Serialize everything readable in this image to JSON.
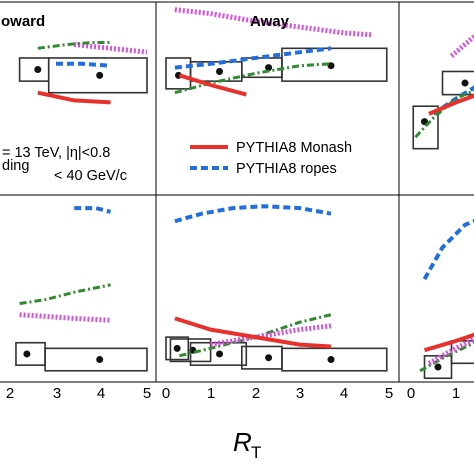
{
  "chart_data": {
    "type": "line",
    "xlabel_main": "R",
    "xlabel_sub": "T",
    "x_ticks": [
      "0",
      "1",
      "2",
      "3",
      "4",
      "5"
    ],
    "xlim": [
      0,
      5
    ],
    "grid": false,
    "legend_placement": "lower-left of Away panel",
    "legend": [
      {
        "key": "monash",
        "label": "PYTHIA8 Monash",
        "color": "#e8312b",
        "style": "solid"
      },
      {
        "key": "ropes",
        "label": "PYTHIA8 ropes",
        "color": "#1f6fe0",
        "style": "dashed"
      }
    ],
    "info_lines": [
      "= 13 TeV, |η|<0.8",
      "ding",
      "< 40 GeV/c"
    ],
    "panels": [
      {
        "id": "toward-top",
        "title": "oward",
        "series": [
          {
            "key": "magenta",
            "color": "#d94fe0",
            "style": "dotted",
            "x": [
              3.0,
              5.0
            ],
            "y": [
              0.78,
              0.74
            ]
          },
          {
            "key": "green",
            "color": "#2e8b2e",
            "style": "dashdot",
            "x": [
              2.0,
              2.8,
              3.5,
              4.0
            ],
            "y": [
              0.76,
              0.78,
              0.79,
              0.79
            ]
          },
          {
            "key": "ropes",
            "color": "#1f6fe0",
            "style": "dashed",
            "x": [
              2.5,
              3.2,
              4.0
            ],
            "y": [
              0.68,
              0.68,
              0.67
            ]
          },
          {
            "key": "monash",
            "color": "#e8312b",
            "style": "solid",
            "x": [
              2.0,
              3.0,
              4.0
            ],
            "y": [
              0.53,
              0.49,
              0.48
            ]
          }
        ],
        "points": [
          {
            "x": 2.0,
            "y": 0.65,
            "xerr": [
              1.5,
              2.3
            ],
            "yerr": [
              0.59,
              0.71
            ]
          },
          {
            "x": 3.7,
            "y": 0.62,
            "xerr": [
              2.3,
              5.0
            ],
            "yerr": [
              0.53,
              0.71
            ]
          }
        ]
      },
      {
        "id": "away-top",
        "title": "Away",
        "series": [
          {
            "key": "magenta",
            "color": "#d94fe0",
            "style": "dotted",
            "x": [
              0.2,
              1.0,
              2.0,
              3.0,
              4.0,
              4.6
            ],
            "y": [
              0.96,
              0.94,
              0.9,
              0.87,
              0.84,
              0.83
            ]
          },
          {
            "key": "ropes",
            "color": "#1f6fe0",
            "style": "dashed",
            "x": [
              0.2,
              1.0,
              2.0,
              3.0,
              3.7
            ],
            "y": [
              0.66,
              0.68,
              0.71,
              0.74,
              0.76
            ]
          },
          {
            "key": "green",
            "color": "#2e8b2e",
            "style": "dashdot",
            "x": [
              0.2,
              1.0,
              2.0,
              3.0,
              3.7
            ],
            "y": [
              0.53,
              0.58,
              0.63,
              0.67,
              0.68
            ]
          },
          {
            "key": "monash",
            "color": "#e8312b",
            "style": "solid",
            "x": [
              0.3,
              1.0,
              1.8
            ],
            "y": [
              0.62,
              0.57,
              0.52
            ]
          }
        ],
        "points": [
          {
            "x": 0.28,
            "y": 0.62,
            "xerr": [
              0.0,
              0.55
            ],
            "yerr": [
              0.55,
              0.71
            ]
          },
          {
            "x": 1.2,
            "y": 0.64,
            "xerr": [
              0.55,
              1.7
            ],
            "yerr": [
              0.59,
              0.69
            ]
          },
          {
            "x": 2.3,
            "y": 0.66,
            "xerr": [
              1.7,
              2.6
            ],
            "yerr": [
              0.61,
              0.71
            ]
          },
          {
            "x": 3.7,
            "y": 0.67,
            "xerr": [
              2.6,
              4.95
            ],
            "yerr": [
              0.59,
              0.76
            ]
          }
        ]
      },
      {
        "id": "trans-top",
        "title": "",
        "series": [
          {
            "key": "magenta",
            "color": "#d94fe0",
            "style": "dotted",
            "x": [
              0.9,
              1.4,
              1.8
            ],
            "y": [
              0.72,
              0.82,
              0.9
            ]
          },
          {
            "key": "ropes",
            "color": "#1f6fe0",
            "style": "dashed",
            "x": [
              0.5,
              1.0,
              1.5,
              1.9
            ],
            "y": [
              0.42,
              0.5,
              0.57,
              0.6
            ]
          },
          {
            "key": "green",
            "color": "#2e8b2e",
            "style": "dashdot",
            "x": [
              0.1,
              0.5,
              1.0,
              1.5
            ],
            "y": [
              0.3,
              0.4,
              0.5,
              0.55
            ]
          },
          {
            "key": "monash",
            "color": "#e8312b",
            "style": "solid",
            "x": [
              0.4,
              1.0,
              1.6
            ],
            "y": [
              0.42,
              0.48,
              0.53
            ]
          }
        ],
        "points": [
          {
            "x": 1.2,
            "y": 0.58,
            "xerr": [
              0.7,
              1.8
            ],
            "yerr": [
              0.52,
              0.64
            ]
          },
          {
            "x": 0.3,
            "y": 0.38,
            "xerr": [
              0.05,
              0.6
            ],
            "yerr": [
              0.24,
              0.46
            ]
          }
        ]
      },
      {
        "id": "toward-bottom",
        "title": "",
        "series": [
          {
            "key": "ropes",
            "color": "#1f6fe0",
            "style": "dashed",
            "x": [
              3.0,
              3.6,
              4.0
            ],
            "y": [
              0.93,
              0.93,
              0.91
            ]
          },
          {
            "key": "green",
            "color": "#2e8b2e",
            "style": "dashdot",
            "x": [
              1.5,
              2.2,
              3.0,
              4.0
            ],
            "y": [
              0.42,
              0.44,
              0.48,
              0.52
            ]
          },
          {
            "key": "magenta",
            "color": "#d94fe0",
            "style": "dotted",
            "x": [
              1.5,
              2.3,
              3.0,
              4.0
            ],
            "y": [
              0.36,
              0.35,
              0.34,
              0.33
            ]
          }
        ],
        "points": [
          {
            "x": 3.7,
            "y": 0.12,
            "xerr": [
              2.2,
              5.0
            ],
            "yerr": [
              0.06,
              0.18
            ]
          },
          {
            "x": 1.7,
            "y": 0.15,
            "xerr": [
              1.4,
              2.2
            ],
            "yerr": [
              0.09,
              0.21
            ]
          }
        ]
      },
      {
        "id": "away-bottom",
        "title": "",
        "series": [
          {
            "key": "ropes",
            "color": "#1f6fe0",
            "style": "dashed",
            "x": [
              0.2,
              0.8,
              1.5,
              2.2,
              3.0,
              3.7
            ],
            "y": [
              0.86,
              0.9,
              0.93,
              0.94,
              0.93,
              0.9
            ]
          },
          {
            "key": "green",
            "color": "#2e8b2e",
            "style": "dashdot",
            "x": [
              0.3,
              1.0,
              2.0,
              3.0,
              3.7
            ],
            "y": [
              0.14,
              0.18,
              0.24,
              0.32,
              0.36
            ]
          },
          {
            "key": "magenta",
            "color": "#d94fe0",
            "style": "dotted",
            "x": [
              1.0,
              2.0,
              3.0,
              3.7
            ],
            "y": [
              0.2,
              0.24,
              0.28,
              0.3
            ]
          },
          {
            "key": "monash",
            "color": "#e8312b",
            "style": "solid",
            "x": [
              0.2,
              1.0,
              2.0,
              3.0,
              3.7
            ],
            "y": [
              0.34,
              0.28,
              0.24,
              0.2,
              0.19
            ]
          }
        ],
        "points": [
          {
            "x": 0.25,
            "y": 0.18,
            "xerr": [
              0.0,
              0.5
            ],
            "yerr": [
              0.12,
              0.24
            ]
          },
          {
            "x": 0.6,
            "y": 0.17,
            "xerr": [
              0.1,
              1.0
            ],
            "yerr": [
              0.11,
              0.23
            ]
          },
          {
            "x": 1.2,
            "y": 0.15,
            "xerr": [
              0.55,
              1.8
            ],
            "yerr": [
              0.09,
              0.21
            ]
          },
          {
            "x": 2.3,
            "y": 0.13,
            "xerr": [
              1.7,
              2.6
            ],
            "yerr": [
              0.07,
              0.19
            ]
          },
          {
            "x": 3.7,
            "y": 0.12,
            "xerr": [
              2.6,
              4.95
            ],
            "yerr": [
              0.06,
              0.18
            ]
          }
        ]
      },
      {
        "id": "trans-bottom",
        "title": "",
        "series": [
          {
            "key": "ropes",
            "color": "#1f6fe0",
            "style": "dashed",
            "x": [
              0.3,
              0.7,
              1.2,
              1.8
            ],
            "y": [
              0.55,
              0.72,
              0.84,
              0.9
            ]
          },
          {
            "key": "green",
            "color": "#2e8b2e",
            "style": "dashdot",
            "x": [
              0.2,
              0.8,
              1.5,
              2.0
            ],
            "y": [
              0.06,
              0.14,
              0.22,
              0.3
            ]
          },
          {
            "key": "magenta",
            "color": "#d94fe0",
            "style": "dotted",
            "x": [
              0.4,
              1.0,
              1.5,
              2.0
            ],
            "y": [
              0.1,
              0.18,
              0.24,
              0.28
            ]
          },
          {
            "key": "monash",
            "color": "#e8312b",
            "style": "solid",
            "x": [
              0.3,
              1.0,
              1.5,
              2.0
            ],
            "y": [
              0.17,
              0.22,
              0.26,
              0.28
            ]
          }
        ],
        "points": [
          {
            "x": 0.6,
            "y": 0.08,
            "xerr": [
              0.3,
              0.9
            ],
            "yerr": [
              0.02,
              0.14
            ]
          },
          {
            "x": 1.5,
            "y": 0.16,
            "xerr": [
              0.9,
              1.95
            ],
            "yerr": [
              0.1,
              0.22
            ]
          }
        ]
      }
    ]
  }
}
